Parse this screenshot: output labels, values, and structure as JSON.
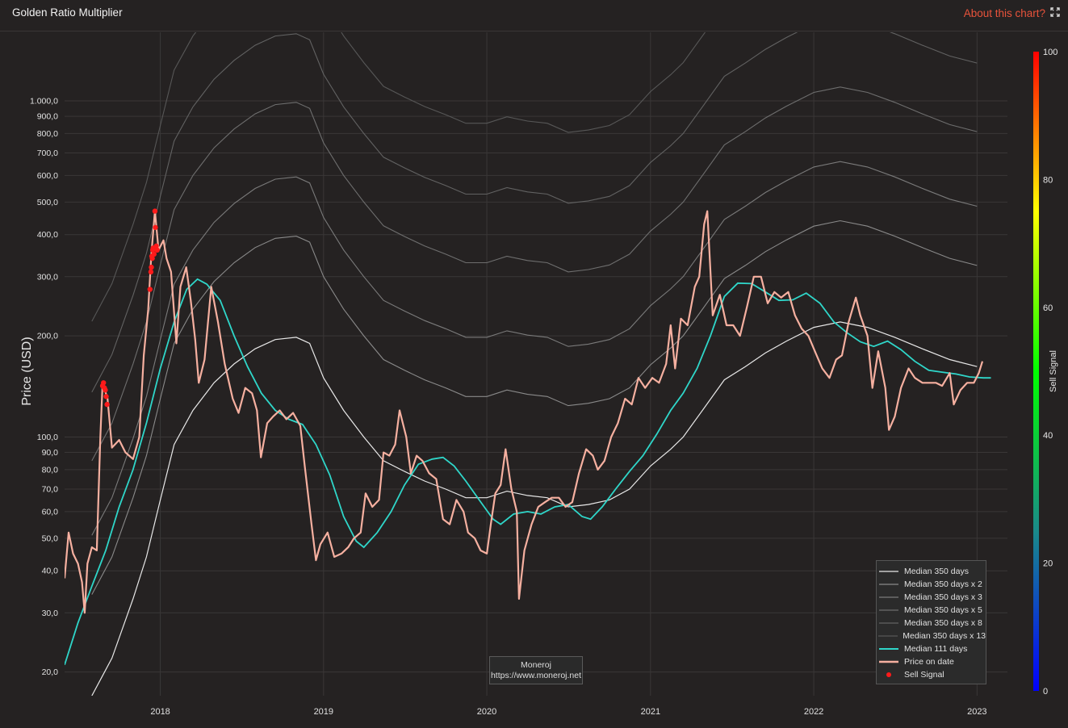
{
  "header": {
    "title": "Golden Ratio Multiplier",
    "about_label": "About this chart?",
    "expand_icon": "expand-icon"
  },
  "credit": {
    "name": "Moneroj",
    "url": "https://www.moneroj.net"
  },
  "colorbar": {
    "label": "Sell Signal",
    "ticks": [
      "0",
      "20",
      "40",
      "60",
      "80",
      "100"
    ],
    "colors": [
      "#0000ff",
      "#00ff00",
      "#ffff00",
      "#ff0000"
    ]
  },
  "chart_data": {
    "type": "line",
    "title": "",
    "ylabel": "Price (USD)",
    "xlabel": "",
    "yscale": "log",
    "ylim": [
      17,
      1600
    ],
    "xlim": [
      "2017-06-01",
      "2023-03-10"
    ],
    "grid": true,
    "legend_position": "bottom-right",
    "y_ticks": [
      "20,0",
      "30,0",
      "40,0",
      "50,0",
      "60,0",
      "70,0",
      "80,0",
      "90,0",
      "100,0",
      "200,0",
      "300,0",
      "400,0",
      "500,0",
      "600,0",
      "700,0",
      "800,0",
      "900,0",
      "1.000,0"
    ],
    "y_tick_values": [
      20,
      30,
      40,
      50,
      60,
      70,
      80,
      90,
      100,
      200,
      300,
      400,
      500,
      600,
      700,
      800,
      900,
      1000
    ],
    "x_ticks": [
      "2018",
      "2019",
      "2020",
      "2021",
      "2022",
      "2023"
    ],
    "x_tick_dates": [
      "2018-01-01",
      "2019-01-01",
      "2020-01-01",
      "2021-01-01",
      "2022-01-01",
      "2023-01-01"
    ],
    "base_median_350": {
      "name": "Median 350 days",
      "points": [
        [
          "2017-08-01",
          17
        ],
        [
          "2017-09-15",
          22
        ],
        [
          "2017-11-01",
          33
        ],
        [
          "2017-12-01",
          44
        ],
        [
          "2018-01-01",
          65
        ],
        [
          "2018-02-01",
          95
        ],
        [
          "2018-03-15",
          120
        ],
        [
          "2018-05-01",
          145
        ],
        [
          "2018-06-15",
          165
        ],
        [
          "2018-08-01",
          183
        ],
        [
          "2018-09-15",
          195
        ],
        [
          "2018-11-01",
          198
        ],
        [
          "2018-12-01",
          190
        ],
        [
          "2019-01-01",
          150
        ],
        [
          "2019-02-15",
          120
        ],
        [
          "2019-04-01",
          100
        ],
        [
          "2019-05-15",
          85
        ],
        [
          "2019-07-01",
          79
        ],
        [
          "2019-08-15",
          74
        ],
        [
          "2019-10-01",
          70
        ],
        [
          "2019-11-15",
          66
        ],
        [
          "2020-01-01",
          66
        ],
        [
          "2020-02-15",
          69
        ],
        [
          "2020-04-01",
          67
        ],
        [
          "2020-05-15",
          66
        ],
        [
          "2020-07-01",
          62
        ],
        [
          "2020-08-15",
          63
        ],
        [
          "2020-10-01",
          65
        ],
        [
          "2020-11-15",
          70
        ],
        [
          "2021-01-01",
          82
        ],
        [
          "2021-02-15",
          92
        ],
        [
          "2021-03-15",
          100
        ],
        [
          "2021-05-01",
          122
        ],
        [
          "2021-06-15",
          148
        ],
        [
          "2021-08-01",
          162
        ],
        [
          "2021-09-15",
          178
        ],
        [
          "2021-11-01",
          193
        ],
        [
          "2022-01-01",
          212
        ],
        [
          "2022-03-01",
          220
        ],
        [
          "2022-05-01",
          212
        ],
        [
          "2022-07-01",
          198
        ],
        [
          "2022-09-01",
          183
        ],
        [
          "2022-11-01",
          170
        ],
        [
          "2023-01-01",
          162
        ]
      ]
    },
    "multiplier_series": [
      {
        "name": "Median 350 days x 2",
        "multiplier": 2
      },
      {
        "name": "Median 350 days x 3",
        "multiplier": 3
      },
      {
        "name": "Median 350 days x 5",
        "multiplier": 5
      },
      {
        "name": "Median 350 days x 8",
        "multiplier": 8
      },
      {
        "name": "Median 350 days x 13",
        "multiplier": 13
      }
    ],
    "median_111": {
      "name": "Median 111 days",
      "color": "#2fd6c9",
      "points": [
        [
          "2017-06-01",
          21
        ],
        [
          "2017-07-01",
          28
        ],
        [
          "2017-08-01",
          36
        ],
        [
          "2017-09-01",
          46
        ],
        [
          "2017-10-01",
          62
        ],
        [
          "2017-11-01",
          80
        ],
        [
          "2017-12-01",
          110
        ],
        [
          "2018-01-01",
          160
        ],
        [
          "2018-02-01",
          220
        ],
        [
          "2018-03-01",
          275
        ],
        [
          "2018-03-25",
          295
        ],
        [
          "2018-04-15",
          285
        ],
        [
          "2018-05-15",
          255
        ],
        [
          "2018-06-15",
          200
        ],
        [
          "2018-07-15",
          162
        ],
        [
          "2018-08-15",
          135
        ],
        [
          "2018-09-15",
          120
        ],
        [
          "2018-10-15",
          113
        ],
        [
          "2018-11-15",
          109
        ],
        [
          "2018-12-15",
          95
        ],
        [
          "2019-01-15",
          77
        ],
        [
          "2019-02-15",
          58
        ],
        [
          "2019-03-15",
          49
        ],
        [
          "2019-04-01",
          47
        ],
        [
          "2019-05-01",
          52
        ],
        [
          "2019-06-01",
          60
        ],
        [
          "2019-07-01",
          72
        ],
        [
          "2019-08-01",
          83
        ],
        [
          "2019-09-01",
          86
        ],
        [
          "2019-09-25",
          87
        ],
        [
          "2019-10-20",
          82
        ],
        [
          "2019-11-15",
          74
        ],
        [
          "2019-12-15",
          65
        ],
        [
          "2020-01-15",
          57
        ],
        [
          "2020-02-01",
          55
        ],
        [
          "2020-03-01",
          59
        ],
        [
          "2020-04-01",
          60
        ],
        [
          "2020-05-01",
          59
        ],
        [
          "2020-06-01",
          62
        ],
        [
          "2020-07-01",
          63
        ],
        [
          "2020-08-01",
          58
        ],
        [
          "2020-08-20",
          57
        ],
        [
          "2020-09-15",
          62
        ],
        [
          "2020-10-15",
          70
        ],
        [
          "2020-11-15",
          79
        ],
        [
          "2020-12-15",
          88
        ],
        [
          "2021-01-15",
          102
        ],
        [
          "2021-02-15",
          120
        ],
        [
          "2021-03-15",
          135
        ],
        [
          "2021-04-15",
          160
        ],
        [
          "2021-05-15",
          200
        ],
        [
          "2021-06-15",
          262
        ],
        [
          "2021-07-15",
          287
        ],
        [
          "2021-08-15",
          286
        ],
        [
          "2021-09-15",
          270
        ],
        [
          "2021-10-15",
          255
        ],
        [
          "2021-11-15",
          256
        ],
        [
          "2021-12-15",
          268
        ],
        [
          "2022-01-15",
          250
        ],
        [
          "2022-02-15",
          220
        ],
        [
          "2022-03-15",
          205
        ],
        [
          "2022-04-15",
          192
        ],
        [
          "2022-05-15",
          186
        ],
        [
          "2022-06-15",
          193
        ],
        [
          "2022-07-15",
          182
        ],
        [
          "2022-08-15",
          168
        ],
        [
          "2022-09-15",
          158
        ],
        [
          "2022-10-15",
          156
        ],
        [
          "2022-11-15",
          154
        ],
        [
          "2022-12-15",
          151
        ],
        [
          "2023-01-15",
          150
        ],
        [
          "2023-02-01",
          150
        ]
      ]
    },
    "price": {
      "name": "Price on date",
      "color": "#f6b0a0",
      "points": [
        [
          "2017-06-01",
          38
        ],
        [
          "2017-06-10",
          52
        ],
        [
          "2017-06-20",
          45
        ],
        [
          "2017-07-01",
          42
        ],
        [
          "2017-07-10",
          37
        ],
        [
          "2017-07-16",
          30
        ],
        [
          "2017-07-22",
          42
        ],
        [
          "2017-08-01",
          47
        ],
        [
          "2017-08-12",
          46
        ],
        [
          "2017-08-20",
          100
        ],
        [
          "2017-08-25",
          145
        ],
        [
          "2017-09-05",
          130
        ],
        [
          "2017-09-15",
          93
        ],
        [
          "2017-10-01",
          98
        ],
        [
          "2017-10-15",
          90
        ],
        [
          "2017-11-01",
          86
        ],
        [
          "2017-11-15",
          100
        ],
        [
          "2017-11-25",
          175
        ],
        [
          "2017-12-05",
          240
        ],
        [
          "2017-12-12",
          350
        ],
        [
          "2017-12-20",
          470
        ],
        [
          "2017-12-28",
          360
        ],
        [
          "2018-01-08",
          385
        ],
        [
          "2018-01-15",
          340
        ],
        [
          "2018-01-25",
          310
        ],
        [
          "2018-02-06",
          190
        ],
        [
          "2018-02-15",
          280
        ],
        [
          "2018-02-28",
          320
        ],
        [
          "2018-03-10",
          255
        ],
        [
          "2018-03-20",
          195
        ],
        [
          "2018-03-28",
          145
        ],
        [
          "2018-04-10",
          170
        ],
        [
          "2018-04-25",
          280
        ],
        [
          "2018-05-10",
          220
        ],
        [
          "2018-05-25",
          165
        ],
        [
          "2018-06-12",
          130
        ],
        [
          "2018-06-25",
          118
        ],
        [
          "2018-07-10",
          140
        ],
        [
          "2018-07-25",
          135
        ],
        [
          "2018-08-05",
          120
        ],
        [
          "2018-08-14",
          87
        ],
        [
          "2018-08-28",
          110
        ],
        [
          "2018-09-10",
          115
        ],
        [
          "2018-09-25",
          120
        ],
        [
          "2018-10-10",
          113
        ],
        [
          "2018-10-25",
          118
        ],
        [
          "2018-11-10",
          108
        ],
        [
          "2018-11-20",
          82
        ],
        [
          "2018-12-05",
          55
        ],
        [
          "2018-12-15",
          43
        ],
        [
          "2018-12-25",
          48
        ],
        [
          "2019-01-10",
          52
        ],
        [
          "2019-01-25",
          44
        ],
        [
          "2019-02-10",
          45
        ],
        [
          "2019-02-25",
          47
        ],
        [
          "2019-03-10",
          50
        ],
        [
          "2019-03-25",
          52
        ],
        [
          "2019-04-05",
          68
        ],
        [
          "2019-04-20",
          62
        ],
        [
          "2019-05-05",
          65
        ],
        [
          "2019-05-15",
          90
        ],
        [
          "2019-05-28",
          88
        ],
        [
          "2019-06-10",
          95
        ],
        [
          "2019-06-20",
          120
        ],
        [
          "2019-07-05",
          100
        ],
        [
          "2019-07-15",
          78
        ],
        [
          "2019-07-28",
          88
        ],
        [
          "2019-08-10",
          85
        ],
        [
          "2019-08-25",
          78
        ],
        [
          "2019-09-10",
          75
        ],
        [
          "2019-09-25",
          57
        ],
        [
          "2019-10-10",
          55
        ],
        [
          "2019-10-25",
          65
        ],
        [
          "2019-11-10",
          60
        ],
        [
          "2019-11-20",
          52
        ],
        [
          "2019-12-05",
          50
        ],
        [
          "2019-12-18",
          46
        ],
        [
          "2020-01-01",
          45
        ],
        [
          "2020-01-10",
          55
        ],
        [
          "2020-01-20",
          68
        ],
        [
          "2020-02-01",
          72
        ],
        [
          "2020-02-12",
          92
        ],
        [
          "2020-02-25",
          70
        ],
        [
          "2020-03-08",
          60
        ],
        [
          "2020-03-13",
          33
        ],
        [
          "2020-03-25",
          46
        ],
        [
          "2020-04-10",
          55
        ],
        [
          "2020-04-25",
          62
        ],
        [
          "2020-05-10",
          64
        ],
        [
          "2020-05-25",
          66
        ],
        [
          "2020-06-10",
          66
        ],
        [
          "2020-06-25",
          62
        ],
        [
          "2020-07-10",
          64
        ],
        [
          "2020-07-25",
          78
        ],
        [
          "2020-08-10",
          92
        ],
        [
          "2020-08-25",
          88
        ],
        [
          "2020-09-05",
          80
        ],
        [
          "2020-09-20",
          85
        ],
        [
          "2020-10-05",
          100
        ],
        [
          "2020-10-20",
          110
        ],
        [
          "2020-11-05",
          130
        ],
        [
          "2020-11-20",
          125
        ],
        [
          "2020-12-05",
          150
        ],
        [
          "2020-12-20",
          140
        ],
        [
          "2021-01-05",
          150
        ],
        [
          "2021-01-20",
          145
        ],
        [
          "2021-02-05",
          165
        ],
        [
          "2021-02-15",
          215
        ],
        [
          "2021-02-25",
          160
        ],
        [
          "2021-03-10",
          225
        ],
        [
          "2021-03-25",
          215
        ],
        [
          "2021-04-10",
          280
        ],
        [
          "2021-04-20",
          300
        ],
        [
          "2021-05-01",
          430
        ],
        [
          "2021-05-08",
          470
        ],
        [
          "2021-05-20",
          230
        ],
        [
          "2021-06-05",
          265
        ],
        [
          "2021-06-20",
          215
        ],
        [
          "2021-07-05",
          215
        ],
        [
          "2021-07-20",
          200
        ],
        [
          "2021-08-05",
          245
        ],
        [
          "2021-08-20",
          300
        ],
        [
          "2021-09-05",
          300
        ],
        [
          "2021-09-20",
          250
        ],
        [
          "2021-10-05",
          270
        ],
        [
          "2021-10-20",
          260
        ],
        [
          "2021-11-05",
          270
        ],
        [
          "2021-11-20",
          230
        ],
        [
          "2021-12-05",
          210
        ],
        [
          "2021-12-20",
          200
        ],
        [
          "2022-01-05",
          178
        ],
        [
          "2022-01-20",
          160
        ],
        [
          "2022-02-05",
          150
        ],
        [
          "2022-02-20",
          170
        ],
        [
          "2022-03-05",
          175
        ],
        [
          "2022-03-20",
          220
        ],
        [
          "2022-04-05",
          260
        ],
        [
          "2022-04-15",
          230
        ],
        [
          "2022-05-01",
          200
        ],
        [
          "2022-05-12",
          140
        ],
        [
          "2022-05-25",
          180
        ],
        [
          "2022-06-10",
          140
        ],
        [
          "2022-06-18",
          105
        ],
        [
          "2022-07-01",
          115
        ],
        [
          "2022-07-15",
          140
        ],
        [
          "2022-08-01",
          160
        ],
        [
          "2022-08-15",
          150
        ],
        [
          "2022-09-01",
          145
        ],
        [
          "2022-09-15",
          145
        ],
        [
          "2022-10-01",
          145
        ],
        [
          "2022-10-15",
          142
        ],
        [
          "2022-11-01",
          155
        ],
        [
          "2022-11-10",
          125
        ],
        [
          "2022-11-25",
          138
        ],
        [
          "2022-12-10",
          145
        ],
        [
          "2022-12-25",
          145
        ],
        [
          "2023-01-05",
          155
        ],
        [
          "2023-01-13",
          168
        ]
      ]
    },
    "sell_signal": {
      "name": "Sell Signal",
      "color": "#ff1a1a",
      "points": [
        [
          "2017-08-25",
          142
        ],
        [
          "2017-08-27",
          145
        ],
        [
          "2017-08-29",
          140
        ],
        [
          "2017-08-31",
          138
        ],
        [
          "2017-09-02",
          132
        ],
        [
          "2017-09-04",
          125
        ],
        [
          "2017-12-09",
          275
        ],
        [
          "2017-12-11",
          310
        ],
        [
          "2017-12-12",
          320
        ],
        [
          "2017-12-13",
          345
        ],
        [
          "2017-12-14",
          340
        ],
        [
          "2017-12-15",
          360
        ],
        [
          "2017-12-16",
          365
        ],
        [
          "2017-12-18",
          350
        ],
        [
          "2017-12-20",
          470
        ],
        [
          "2017-12-21",
          420
        ],
        [
          "2017-12-23",
          370
        ],
        [
          "2017-12-25",
          360
        ]
      ]
    }
  }
}
